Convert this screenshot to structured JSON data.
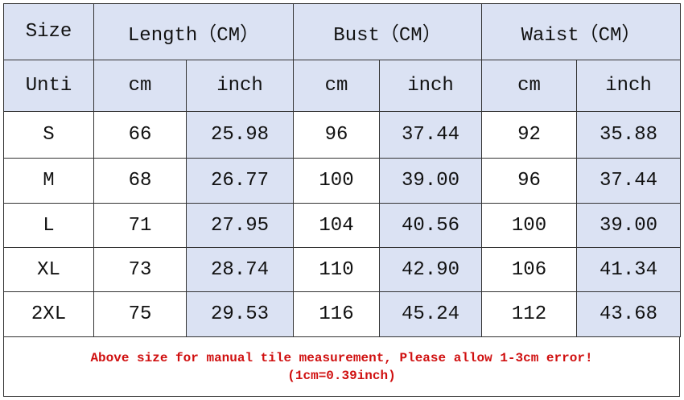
{
  "table": {
    "header": [
      "Size",
      "Length（CM）",
      "Bust（CM）",
      "Waist（CM）"
    ],
    "units": [
      "Unti",
      "cm",
      "inch",
      "cm",
      "inch",
      "cm",
      "inch"
    ],
    "rows": [
      [
        "S",
        "66",
        "25.98",
        "96",
        "37.44",
        "92",
        "35.88"
      ],
      [
        "M",
        "68",
        "26.77",
        "100",
        "39.00",
        "96",
        "37.44"
      ],
      [
        "L",
        "71",
        "27.95",
        "104",
        "40.56",
        "100",
        "39.00"
      ],
      [
        "XL",
        "73",
        "28.74",
        "110",
        "42.90",
        "106",
        "41.34"
      ],
      [
        "2XL",
        "75",
        "29.53",
        "116",
        "45.24",
        "112",
        "43.68"
      ]
    ]
  },
  "note": [
    "Above size for manual tile measurement, Please allow 1-3cm error!",
    "(1cm=0.39inch)"
  ]
}
